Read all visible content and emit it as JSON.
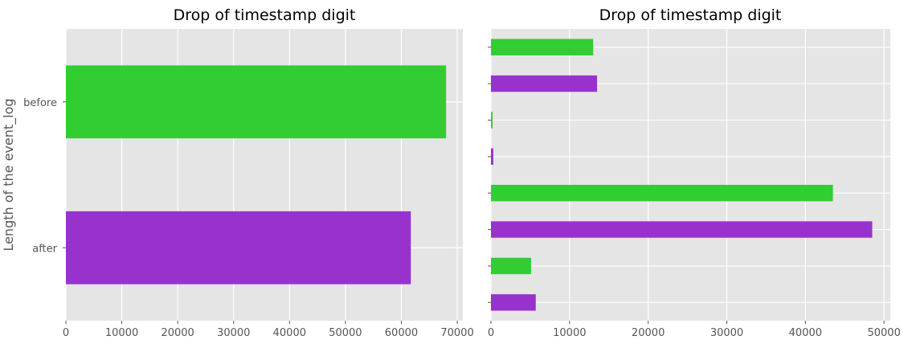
{
  "chart_data": [
    {
      "type": "bar",
      "orientation": "horizontal",
      "title": "Drop of timestamp digit",
      "ylabel": "Length of the event_log",
      "xlabel": "",
      "categories": [
        "before",
        "after"
      ],
      "values": [
        68000,
        61700
      ],
      "colors": [
        "#32cd32",
        "#9932cc"
      ],
      "xlim": [
        0,
        71000
      ],
      "xticks": [
        0,
        10000,
        20000,
        30000,
        40000,
        50000,
        60000,
        70000
      ],
      "grid": true
    },
    {
      "type": "bar",
      "orientation": "horizontal",
      "title": "Drop of timestamp digit",
      "ylabel": "",
      "xlabel": "",
      "categories": [
        "",
        "",
        "",
        "",
        "",
        "",
        "",
        ""
      ],
      "values": [
        13000,
        13500,
        200,
        300,
        43500,
        48500,
        5100,
        5700
      ],
      "colors": [
        "#32cd32",
        "#9932cc",
        "#32cd32",
        "#9932cc",
        "#32cd32",
        "#9932cc",
        "#32cd32",
        "#9932cc"
      ],
      "xlim": [
        0,
        50800
      ],
      "xticks": [
        0,
        10000,
        20000,
        30000,
        40000,
        50000
      ],
      "grid": true
    }
  ]
}
